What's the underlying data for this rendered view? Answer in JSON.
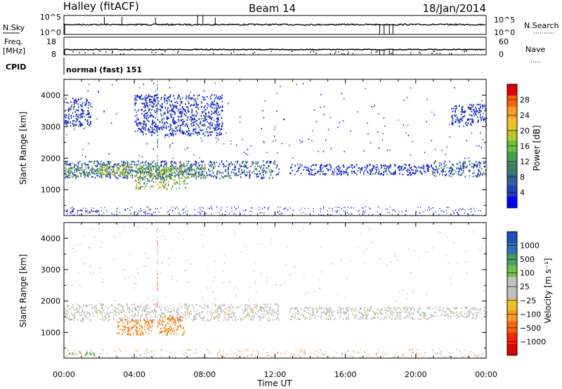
{
  "header": {
    "title": "Halley (fitACF)",
    "beam": "Beam 14",
    "date": "18/Jan/2014"
  },
  "noise_panel": {
    "left_label": "N.Sky",
    "left_ticks": [
      "10^5",
      "10^0"
    ],
    "right_ticks": [
      "10^5",
      "10^0"
    ],
    "right_label": "N.Search"
  },
  "freq_panel": {
    "left_label_line1": "Freq.",
    "left_label_line2": "[MHz]",
    "left_ticks": [
      "18",
      "8"
    ],
    "right_ticks": [
      "60",
      "0"
    ],
    "right_label": "Nave"
  },
  "cpid": {
    "label": "CPID",
    "program": "normal (fast) 151"
  },
  "chart_data": [
    {
      "type": "heatmap",
      "title": "",
      "ylabel": "Slant Range [km]",
      "ylim": [
        180,
        4500
      ],
      "yticks": [
        "4000",
        "3000",
        "2000",
        "1000"
      ],
      "xlim": [
        0,
        24
      ],
      "colorbar_label": "Power [dB]",
      "colorbar_ticks": [
        "28",
        "24",
        "20",
        "16",
        "12",
        "8",
        "4"
      ],
      "colorbar_colors": [
        "#e00000",
        "#ff6000",
        "#ff9a20",
        "#f0c020",
        "#b8c820",
        "#70c040",
        "#40a050",
        "#3a8060",
        "#3060a0",
        "#2040c0",
        "#0000ff"
      ],
      "grid": false,
      "regions": [
        {
          "t0": 0.0,
          "t1": 12.2,
          "r0": 1350,
          "r1": 1900,
          "level": "medium"
        },
        {
          "t0": 0.0,
          "t1": 3.5,
          "r0": 1400,
          "r1": 1700,
          "level": "high"
        },
        {
          "t0": 2.0,
          "t1": 8.0,
          "r0": 1400,
          "r1": 1800,
          "level": "high"
        },
        {
          "t0": 4.0,
          "t1": 7.0,
          "r0": 1000,
          "r1": 1700,
          "level": "high"
        },
        {
          "t0": 12.8,
          "t1": 21.0,
          "r0": 1450,
          "r1": 1800,
          "level": "low"
        },
        {
          "t0": 21.0,
          "t1": 24.0,
          "r0": 1400,
          "r1": 1900,
          "level": "medium"
        },
        {
          "t0": 0.0,
          "t1": 1.5,
          "r0": 3000,
          "r1": 3900,
          "level": "low"
        },
        {
          "t0": 4.0,
          "t1": 9.0,
          "r0": 2700,
          "r1": 4000,
          "level": "low"
        },
        {
          "t0": 22.0,
          "t1": 24.0,
          "r0": 3000,
          "r1": 3700,
          "level": "low"
        },
        {
          "t0": 0.1,
          "t1": 2.0,
          "r0": 250,
          "r1": 350,
          "level": "low"
        }
      ]
    },
    {
      "type": "heatmap",
      "title": "",
      "ylabel": "Slant Range [km]",
      "ylim": [
        180,
        4500
      ],
      "yticks": [
        "4000",
        "3000",
        "2000",
        "1000"
      ],
      "xlim": [
        0,
        24
      ],
      "xticks": [
        "00:00",
        "04:00",
        "08:00",
        "12:00",
        "16:00",
        "20:00",
        "00:00"
      ],
      "xlabel": "Time UT",
      "colorbar_label": "Velocity [m s⁻¹]",
      "colorbar_ticks": [
        "1000",
        "500",
        "100",
        "25",
        "−25",
        "−100",
        "−500",
        "−1000"
      ],
      "colorbar_colors": [
        "#2050c0",
        "#3070b0",
        "#40a060",
        "#70c040",
        "#c0c0c0",
        "#c0c0c0",
        "#f0c020",
        "#ff9a20",
        "#ff6000",
        "#ff2000",
        "#e00000"
      ],
      "grid": false,
      "regions": [
        {
          "t0": 0.0,
          "t1": 12.2,
          "r0": 1350,
          "r1": 1900,
          "velocity": "near-zero"
        },
        {
          "t0": 12.8,
          "t1": 24.0,
          "r0": 1400,
          "r1": 1800,
          "velocity": "near-zero"
        },
        {
          "t0": 3.0,
          "t1": 5.0,
          "r0": 900,
          "r1": 1400,
          "velocity": "negative"
        },
        {
          "t0": 5.3,
          "t1": 6.8,
          "r0": 900,
          "r1": 1500,
          "velocity": "negative"
        },
        {
          "t0": 0.2,
          "t1": 1.8,
          "r0": 250,
          "r1": 350,
          "velocity": "positive"
        }
      ]
    }
  ],
  "colors": {
    "power_axis": "#000000",
    "near_zero_velocity": "#c0c0c0",
    "negative_velocity": "#ff8000"
  }
}
